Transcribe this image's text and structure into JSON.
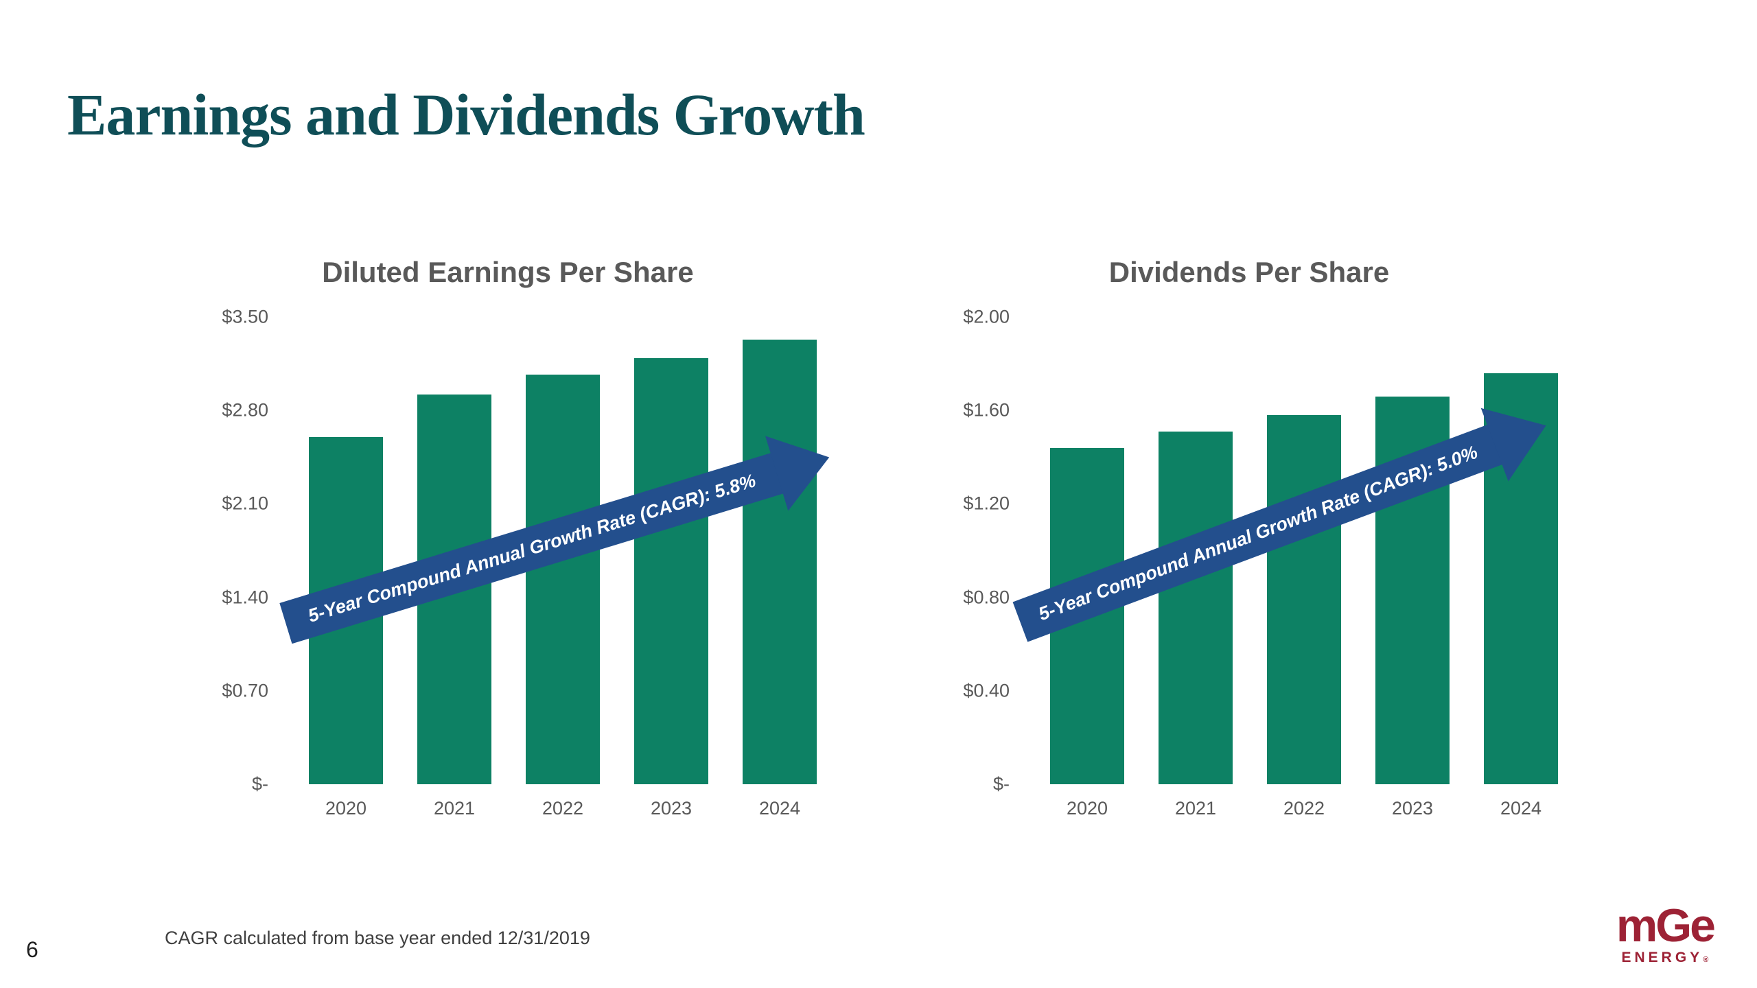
{
  "slide": {
    "title": "Earnings and Dividends Growth",
    "footnote": "CAGR calculated from base year ended 12/31/2019",
    "page_number": "6",
    "logo": {
      "text": "mGe",
      "subtext": "ENERGY",
      "reg": "®"
    }
  },
  "colors": {
    "bar": "#0d8164",
    "arrow": "#234f8d",
    "title": "#0f4e57",
    "axis_text": "#595959",
    "logo": "#9d2235"
  },
  "chart_data": [
    {
      "type": "bar",
      "title": "Diluted Earnings Per Share",
      "categories": [
        "2020",
        "2021",
        "2022",
        "2023",
        "2024"
      ],
      "values": [
        2.6,
        2.92,
        3.07,
        3.19,
        3.33
      ],
      "ylim": [
        0,
        3.5
      ],
      "ytick_labels": [
        "$3.50",
        "$2.80",
        "$2.10",
        "$1.40",
        "$0.70",
        "$-"
      ],
      "ytick_values": [
        3.5,
        2.8,
        2.1,
        1.4,
        0.7,
        0
      ],
      "xlabel": "",
      "ylabel": "",
      "grid": false,
      "legend": "none",
      "annotation": "5-Year Compound Annual Growth Rate (CAGR): 5.8%"
    },
    {
      "type": "bar",
      "title": "Dividends Per Share",
      "categories": [
        "2020",
        "2021",
        "2022",
        "2023",
        "2024"
      ],
      "values": [
        1.44,
        1.51,
        1.58,
        1.66,
        1.76
      ],
      "ylim": [
        0,
        2.0
      ],
      "ytick_labels": [
        "$2.00",
        "$1.60",
        "$1.20",
        "$0.80",
        "$0.40",
        "$-"
      ],
      "ytick_values": [
        2.0,
        1.6,
        1.2,
        0.8,
        0.4,
        0
      ],
      "xlabel": "",
      "ylabel": "",
      "grid": false,
      "legend": "none",
      "annotation": "5-Year Compound Annual Growth Rate (CAGR): 5.0%"
    }
  ]
}
